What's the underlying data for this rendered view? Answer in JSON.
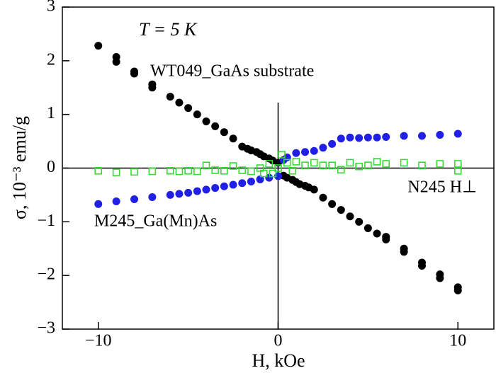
{
  "chart_data": {
    "type": "scatter",
    "annotation": "T = 5 K",
    "x_label": "H, kOe",
    "y_label": "σ, 10⁻³ emu/g",
    "xlim": [
      -12,
      12
    ],
    "ylim": [
      -3,
      3
    ],
    "xticks": [
      {
        "value": -10,
        "label": "−10"
      },
      0,
      10
    ],
    "yticks": [
      {
        "value": -3,
        "label": "−3"
      },
      {
        "value": -2,
        "label": "−2"
      },
      {
        "value": -1,
        "label": "−1"
      },
      0,
      1,
      2,
      3
    ],
    "series": [
      {
        "name": "WT049_GaAs substrate",
        "color": "#000000",
        "marker": "circle",
        "x": [
          -10,
          -9,
          -9,
          -8,
          -8,
          -7,
          -7,
          -6,
          -5.5,
          -5,
          -4.5,
          -4,
          -3.5,
          -3,
          -2.5,
          -2,
          -1.7,
          -1.5,
          -1.2,
          -1,
          -0.8,
          -0.5,
          -0.3,
          0,
          0.3,
          0.5,
          0.8,
          1,
          1.2,
          1.5,
          1.7,
          2,
          2.5,
          3,
          3.5,
          4,
          4.5,
          5,
          5.5,
          6,
          6,
          7,
          7,
          8,
          8,
          9,
          9,
          10,
          10
        ],
        "values": [
          2.28,
          2.07,
          1.98,
          1.8,
          1.76,
          1.56,
          1.5,
          1.33,
          1.22,
          1.12,
          1.0,
          0.87,
          0.78,
          0.67,
          0.55,
          0.4,
          0.36,
          0.33,
          0.3,
          0.26,
          0.22,
          0.18,
          0.14,
          0.1,
          -0.14,
          -0.18,
          -0.22,
          -0.26,
          -0.3,
          -0.33,
          -0.36,
          -0.4,
          -0.55,
          -0.67,
          -0.78,
          -0.9,
          -1.0,
          -1.12,
          -1.22,
          -1.28,
          -1.33,
          -1.5,
          -1.56,
          -1.76,
          -1.82,
          -1.98,
          -2.05,
          -2.22,
          -2.28
        ]
      },
      {
        "name": "M245_Ga(Mn)As",
        "color": "#1f1fe6",
        "marker": "circle",
        "x": [
          -10,
          -9,
          -8,
          -7,
          -6,
          -5.5,
          -5,
          -4.5,
          -4,
          -3.5,
          -3,
          -2.5,
          -2,
          -1.5,
          -1,
          -0.5,
          0,
          0.3,
          0.5,
          1,
          1.5,
          2,
          2.5,
          3,
          3.5,
          4,
          4.5,
          5,
          5.5,
          6,
          7,
          8,
          9,
          10
        ],
        "values": [
          -0.67,
          -0.62,
          -0.58,
          -0.54,
          -0.5,
          -0.48,
          -0.46,
          -0.43,
          -0.4,
          -0.37,
          -0.34,
          -0.31,
          -0.28,
          -0.25,
          -0.21,
          -0.18,
          -0.15,
          0.15,
          0.2,
          0.28,
          0.3,
          0.32,
          0.38,
          0.45,
          0.55,
          0.57,
          0.56,
          0.57,
          0.57,
          0.58,
          0.6,
          0.6,
          0.62,
          0.64
        ]
      },
      {
        "name": "N245 H⊥",
        "color": "#33dd33",
        "marker": "square",
        "x": [
          -10,
          -9,
          -8,
          -7,
          -6,
          -5.5,
          -5,
          -4.5,
          -4,
          -3.5,
          -3,
          -2.5,
          -2,
          -1.5,
          -1,
          -0.8,
          -0.5,
          -0.3,
          0,
          0.2,
          0.5,
          0.8,
          1,
          1.5,
          2,
          2.5,
          3,
          3.5,
          4,
          4.5,
          5,
          5.5,
          6,
          7,
          8,
          9,
          10,
          10
        ],
        "values": [
          -0.05,
          -0.08,
          -0.07,
          -0.06,
          -0.05,
          -0.06,
          -0.05,
          -0.06,
          0.05,
          -0.04,
          -0.05,
          0.04,
          -0.04,
          -0.06,
          0.0,
          -0.1,
          0.08,
          -0.1,
          0.0,
          0.25,
          0.1,
          -0.05,
          0.12,
          0.05,
          0.1,
          0.05,
          0.05,
          -0.03,
          0.1,
          0.03,
          0.05,
          0.12,
          0.08,
          0.1,
          0.05,
          0.08,
          0.08,
          -0.05
        ]
      }
    ]
  }
}
